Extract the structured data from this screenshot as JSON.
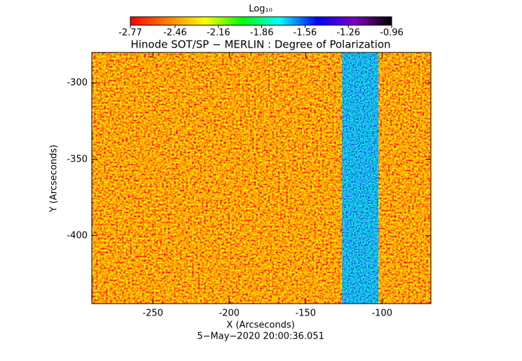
{
  "chart_data": {
    "type": "image",
    "title": "Hinode SOT/SP − MERLIN : Degree of Polarization",
    "xlabel": "X (Arcseconds)",
    "ylabel": "Y (Arcseconds)",
    "footer": "5−May−2020 20:00:36.051",
    "xlim": [
      -290,
      -68
    ],
    "xticks": [
      -250,
      -200,
      -150,
      -100
    ],
    "ylim": [
      -444.5,
      -280
    ],
    "yticks": [
      -300,
      -350,
      -400
    ],
    "colorbar": {
      "title": "Log₁₀",
      "lim": [
        -2.77,
        -0.96
      ],
      "ticks": [
        -2.77,
        -2.46,
        -2.16,
        -1.86,
        -1.56,
        -1.26,
        -0.96
      ],
      "colormap": [
        "#ff0000",
        "#ff8000",
        "#ffff00",
        "#00ff00",
        "#00ffff",
        "#0000ff",
        "#8000c0",
        "#000000"
      ]
    }
  }
}
